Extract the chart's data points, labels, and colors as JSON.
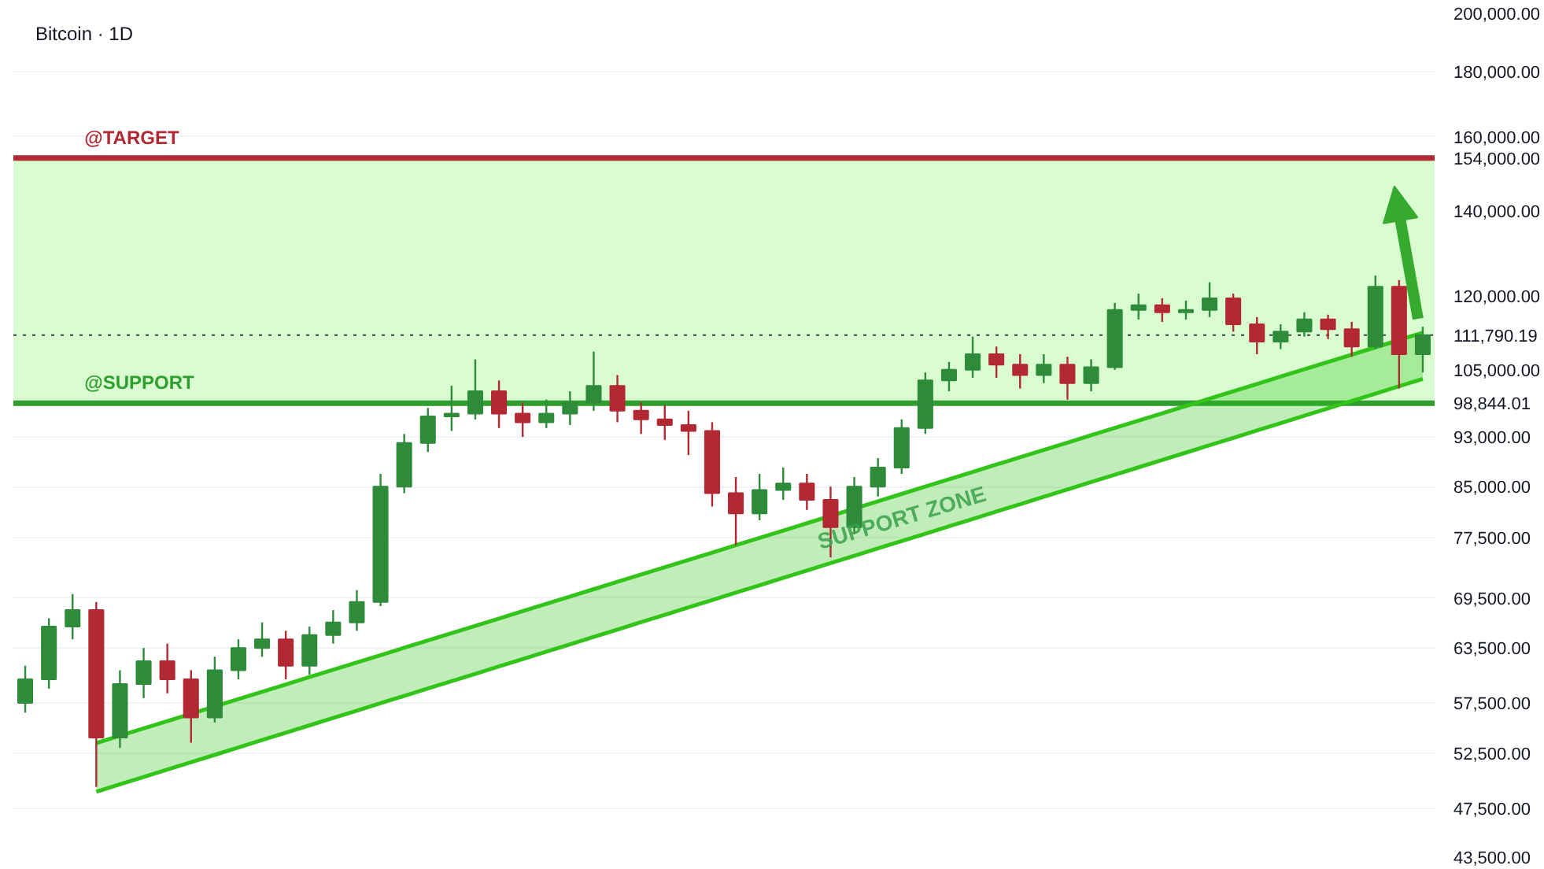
{
  "chart_data": {
    "type": "candlestick",
    "title": "Bitcoin · 1D",
    "categories": [
      null,
      null,
      null,
      null,
      null,
      null,
      null,
      null,
      null,
      null,
      null,
      null,
      null,
      null,
      null,
      null,
      null,
      null,
      null,
      null,
      null,
      null,
      null,
      null,
      null,
      null,
      null,
      null,
      null,
      null,
      null,
      null,
      null,
      null,
      null,
      null,
      null,
      null,
      null,
      null,
      null,
      null,
      null,
      null,
      null,
      null,
      null,
      null,
      null,
      null,
      null,
      null,
      null,
      null,
      null,
      null,
      null,
      null,
      null,
      null
    ],
    "ohlc": [
      [
        57500,
        61500,
        56500,
        60000
      ],
      [
        60000,
        67000,
        59000,
        66000
      ],
      [
        66000,
        70000,
        64500,
        68000
      ],
      [
        68000,
        69000,
        49400,
        54000
      ],
      [
        54000,
        61000,
        53000,
        59500
      ],
      [
        59500,
        63500,
        58000,
        62000
      ],
      [
        62000,
        64000,
        58500,
        60000
      ],
      [
        60000,
        61000,
        53500,
        56000
      ],
      [
        56000,
        62500,
        55500,
        61000
      ],
      [
        61000,
        64500,
        60000,
        63500
      ],
      [
        63500,
        66500,
        62500,
        64500
      ],
      [
        64500,
        65500,
        60000,
        61500
      ],
      [
        61500,
        66000,
        60500,
        65000
      ],
      [
        65000,
        68000,
        64000,
        66500
      ],
      [
        66500,
        70500,
        65500,
        69000
      ],
      [
        69000,
        87000,
        68500,
        85000
      ],
      [
        85000,
        93500,
        84000,
        92000
      ],
      [
        92000,
        98000,
        90500,
        96500
      ],
      [
        96500,
        102000,
        94000,
        97000
      ],
      [
        97000,
        107000,
        96000,
        101000
      ],
      [
        101000,
        103000,
        94500,
        97000
      ],
      [
        97000,
        99000,
        93000,
        95500
      ],
      [
        95500,
        99500,
        94500,
        97000
      ],
      [
        97000,
        101000,
        95000,
        99000
      ],
      [
        99000,
        108500,
        97500,
        102000
      ],
      [
        102000,
        104000,
        95500,
        97500
      ],
      [
        97500,
        99000,
        93500,
        96000
      ],
      [
        96000,
        98500,
        92500,
        95000
      ],
      [
        95000,
        97500,
        90000,
        94000
      ],
      [
        94000,
        95500,
        82000,
        84000
      ],
      [
        84000,
        86500,
        76500,
        81000
      ],
      [
        81000,
        87000,
        80000,
        84500
      ],
      [
        84500,
        88000,
        83000,
        85500
      ],
      [
        85500,
        87000,
        81500,
        83000
      ],
      [
        83000,
        85000,
        74800,
        79000
      ],
      [
        79000,
        86500,
        78000,
        85000
      ],
      [
        85000,
        89500,
        83500,
        88000
      ],
      [
        88000,
        96000,
        87000,
        94500
      ],
      [
        94500,
        104500,
        93500,
        103000
      ],
      [
        103000,
        106500,
        101000,
        105000
      ],
      [
        105000,
        111500,
        103500,
        108000
      ],
      [
        108000,
        109500,
        103500,
        106000
      ],
      [
        106000,
        108000,
        101500,
        104000
      ],
      [
        104000,
        108000,
        102500,
        106000
      ],
      [
        106000,
        107500,
        99500,
        102500
      ],
      [
        102500,
        107000,
        101000,
        105500
      ],
      [
        105500,
        118500,
        105000,
        117000
      ],
      [
        117000,
        120500,
        115000,
        118000
      ],
      [
        118000,
        119500,
        114500,
        116500
      ],
      [
        116500,
        119000,
        115000,
        117000
      ],
      [
        117000,
        123000,
        115500,
        119500
      ],
      [
        119500,
        120500,
        112500,
        114000
      ],
      [
        114000,
        115500,
        108000,
        110500
      ],
      [
        110500,
        114000,
        109000,
        112500
      ],
      [
        112500,
        116500,
        111500,
        115000
      ],
      [
        115000,
        116000,
        111000,
        113000
      ],
      [
        113000,
        114500,
        107500,
        109500
      ],
      [
        109500,
        124500,
        109000,
        122000
      ],
      [
        122000,
        123500,
        101500,
        108000
      ],
      [
        108000,
        113500,
        104500,
        111790.19
      ]
    ],
    "ylim": [
      43500,
      200000
    ],
    "log": true,
    "tick_labels": "y",
    "grid": "y",
    "yticks": [
      {
        "value": 43500,
        "label": "43,500.00"
      },
      {
        "value": 47500,
        "label": "47,500.00"
      },
      {
        "value": 52500,
        "label": "52,500.00"
      },
      {
        "value": 57500,
        "label": "57,500.00"
      },
      {
        "value": 63500,
        "label": "63,500.00"
      },
      {
        "value": 69500,
        "label": "69,500.00"
      },
      {
        "value": 77500,
        "label": "77,500.00"
      },
      {
        "value": 85000,
        "label": "85,000.00"
      },
      {
        "value": 93000,
        "label": "93,000.00"
      },
      {
        "value": 105000,
        "label": "105,000.00"
      },
      {
        "value": 120000,
        "label": "120,000.00"
      },
      {
        "value": 140000,
        "label": "140,000.00"
      },
      {
        "value": 160000,
        "label": "160,000.00"
      },
      {
        "value": 180000,
        "label": "180,000.00"
      },
      {
        "value": 200000,
        "label": "200,000.00"
      },
      {
        "value": 154000,
        "label": "154,000.00"
      },
      {
        "value": 111790.19,
        "label": "111,790.19"
      },
      {
        "value": 98844.01,
        "label": "98,844.01"
      }
    ],
    "series": [
      {
        "type": "line",
        "color": "#33c41a",
        "values": [
          null,
          null,
          null,
          53470,
          54180,
          54900,
          55640,
          null,
          null,
          57890,
          58660,
          59440,
          60240,
          61040,
          61860,
          62680,
          63520,
          64370,
          65220,
          66090,
          66970,
          67870,
          68770,
          69690,
          70620,
          71560,
          72510,
          73480,
          74460,
          75450,
          76460,
          77480,
          78510,
          79560,
          null,
          81700,
          82790,
          83890,
          85010,
          86140,
          87290,
          88460,
          89640,
          90840,
          92050,
          93280,
          94520,
          95780,
          97060,
          98350,
          99660,
          100990,
          102340,
          103710,
          105090,
          106490,
          107910,
          109350,
          null,
          112290
        ],
        "name": null
      },
      {
        "type": "line",
        "color": "#33c41a",
        "values": [
          null,
          null,
          null,
          48970,
          49630,
          50290,
          50970,
          51650,
          52340,
          53040,
          53760,
          54480,
          55210,
          55950,
          56700,
          57460,
          58230,
          59010,
          59800,
          60600,
          61420,
          62240,
          63080,
          63920,
          64780,
          65650,
          66530,
          67420,
          68330,
          69250,
          70180,
          71120,
          72080,
          73040,
          74020,
          75020,
          76030,
          77050,
          78070,
          79120,
          80180,
          81260,
          82350,
          83450,
          84570,
          85710,
          86860,
          88020,
          89200,
          90400,
          91610,
          92840,
          94090,
          95350,
          96630,
          97930,
          99240,
          100570,
          101920,
          103290
        ],
        "upper": [
          null,
          null,
          null,
          53470,
          54180,
          54900,
          55640,
          56380,
          57130,
          57890,
          58660,
          59440,
          60240,
          61040,
          61860,
          62680,
          63520,
          64370,
          65220,
          66090,
          66970,
          67870,
          68770,
          69690,
          70620,
          71560,
          72510,
          73480,
          74460,
          75450,
          76460,
          77480,
          78510,
          79560,
          80620,
          81700,
          82790,
          83890,
          85010,
          86140,
          87290,
          88460,
          89640,
          90840,
          92050,
          93280,
          94520,
          95780,
          97060,
          98350,
          99660,
          100990,
          102340,
          103710,
          105090,
          106490,
          107910,
          109350,
          110810,
          112290
        ],
        "lower": [
          null,
          null,
          null,
          48970,
          49630,
          50290,
          50970,
          51650,
          52340,
          53040,
          53760,
          54480,
          55210,
          55950,
          56700,
          57460,
          58230,
          59010,
          59800,
          60600,
          61420,
          62240,
          63080,
          63920,
          64780,
          65650,
          66530,
          67420,
          68330,
          69250,
          70180,
          71120,
          72080,
          73040,
          74020,
          75020,
          76030,
          77050,
          78070,
          79120,
          80180,
          81260,
          82350,
          83450,
          84570,
          85710,
          86860,
          88020,
          89200,
          90400,
          91610,
          92840,
          94090,
          95350,
          96630,
          97930,
          99240,
          100570,
          101920,
          103290
        ]
      }
    ],
    "ref_lines": [
      {
        "axis": "y",
        "value": 154000,
        "label": "@TARGET",
        "color": "#b22833",
        "line_style": "solid"
      },
      {
        "axis": "y",
        "value": 98844.01,
        "label": "@SUPPORT",
        "color": "#2e9e2e",
        "line_style": "solid"
      },
      {
        "axis": "y",
        "value": 111790.19,
        "label": null,
        "color": "#131722",
        "line_style": "dotted"
      }
    ],
    "bands": [
      {
        "axis": "y",
        "from": 98844.01,
        "to": 154000,
        "label": null,
        "color": "#d9fdd0"
      }
    ],
    "annotations": [
      "SUPPORT ZONE"
    ]
  }
}
